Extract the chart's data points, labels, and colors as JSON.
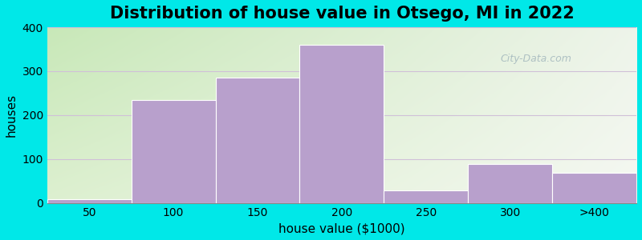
{
  "title": "Distribution of house value in Otsego, MI in 2022",
  "xlabel": "house value ($1000)",
  "ylabel": "houses",
  "categories": [
    "50",
    "100",
    "150",
    "200",
    "250",
    "300",
    ">400"
  ],
  "values": [
    8,
    235,
    285,
    360,
    28,
    88,
    68
  ],
  "bar_color": "#b8a0cc",
  "ylim": [
    0,
    400
  ],
  "yticks": [
    0,
    100,
    200,
    300,
    400
  ],
  "background_outer": "#00e8e8",
  "grad_color_topleft": "#c8e8b8",
  "grad_color_topright": "#e8f0e0",
  "grad_color_bottomleft": "#d8ecc8",
  "grad_color_bottomright": "#f5f8f0",
  "grid_color": "#d0c0d8",
  "title_fontsize": 15,
  "axis_label_fontsize": 11,
  "tick_fontsize": 10,
  "watermark_text": "City-Data.com"
}
